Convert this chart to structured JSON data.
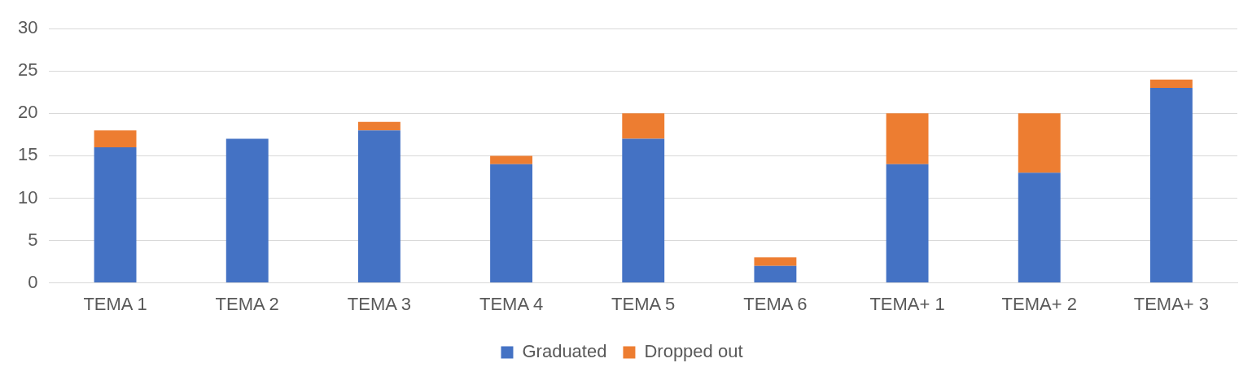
{
  "chart_data": {
    "type": "bar",
    "stacked": true,
    "categories": [
      "TEMA 1",
      "TEMA 2",
      "TEMA 3",
      "TEMA 4",
      "TEMA 5",
      "TEMA 6",
      "TEMA+ 1",
      "TEMA+ 2",
      "TEMA+ 3"
    ],
    "series": [
      {
        "name": "Graduated",
        "color": "#4472c4",
        "values": [
          16,
          17,
          18,
          14,
          17,
          2,
          14,
          13,
          23
        ]
      },
      {
        "name": "Dropped out",
        "color": "#ed7d31",
        "values": [
          2,
          0,
          1,
          1,
          3,
          1,
          6,
          7,
          1
        ]
      }
    ],
    "ylim": [
      0,
      30
    ],
    "yticks": [
      0,
      5,
      10,
      15,
      20,
      25,
      30
    ],
    "grid": "y",
    "legend": "bottom"
  }
}
